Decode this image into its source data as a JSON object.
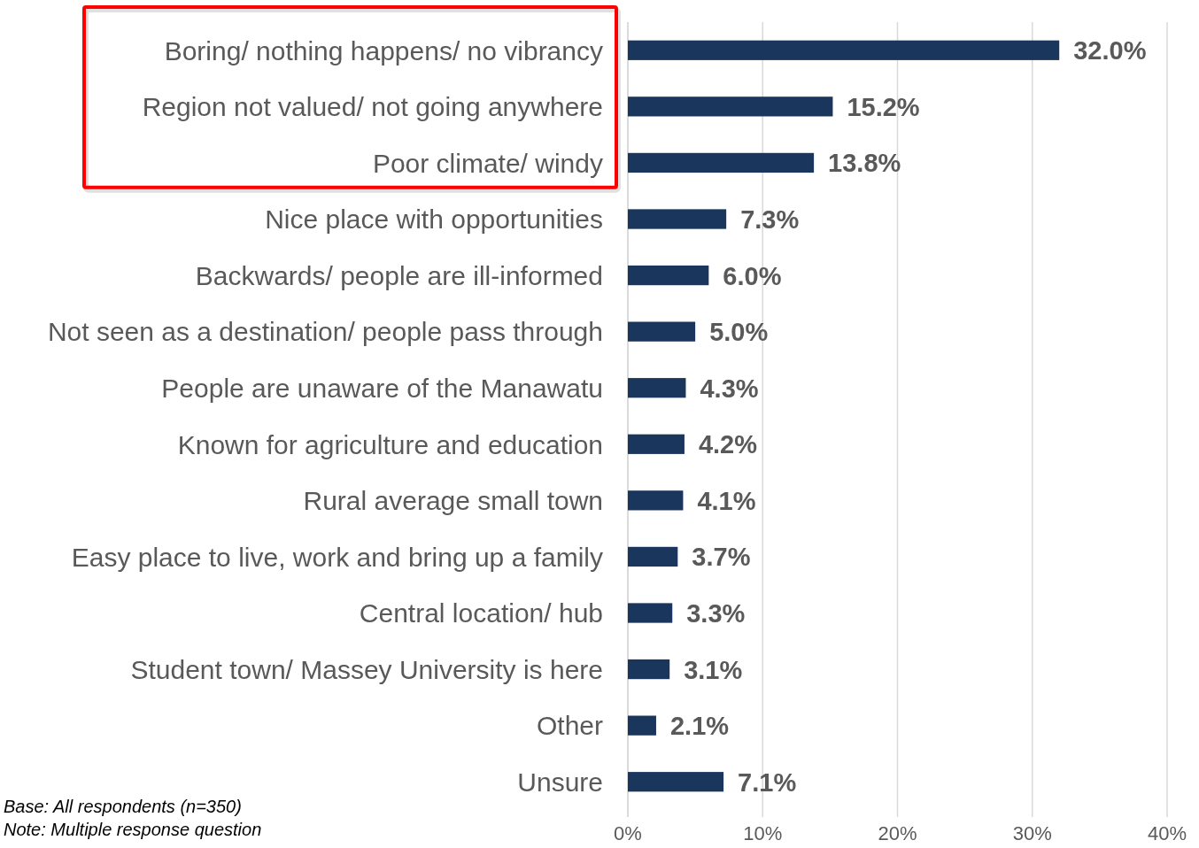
{
  "chart_data": {
    "type": "bar",
    "orientation": "horizontal",
    "categories": [
      "Boring/ nothing happens/ no vibrancy",
      "Region not valued/ not going anywhere",
      "Poor climate/ windy",
      "Nice place with opportunities",
      "Backwards/ people are ill-informed",
      "Not seen as a destination/ people pass through",
      "People are unaware of the Manawatu",
      "Known for agriculture and education",
      "Rural average small town",
      "Easy place to live, work and bring up a family",
      "Central location/ hub",
      "Student town/ Massey University is here",
      "Other",
      "Unsure"
    ],
    "values": [
      32.0,
      15.2,
      13.8,
      7.3,
      6.0,
      5.0,
      4.3,
      4.2,
      4.1,
      3.7,
      3.3,
      3.1,
      2.1,
      7.1
    ],
    "value_labels": [
      "32.0%",
      "15.2%",
      "13.8%",
      "7.3%",
      "6.0%",
      "5.0%",
      "4.3%",
      "4.2%",
      "4.1%",
      "3.7%",
      "3.3%",
      "3.1%",
      "2.1%",
      "7.1%"
    ],
    "color": "#1b365d",
    "xlim": [
      0,
      40
    ],
    "xticks": [
      {
        "value": 0,
        "label": "0%"
      },
      {
        "value": 10,
        "label": "10%"
      },
      {
        "value": 20,
        "label": "20%"
      },
      {
        "value": 30,
        "label": "30%"
      },
      {
        "value": 40,
        "label": "40%"
      }
    ],
    "grid": "x",
    "annotations": [
      "Base: All respondents (n=350)",
      "Note: Multiple response question"
    ]
  }
}
